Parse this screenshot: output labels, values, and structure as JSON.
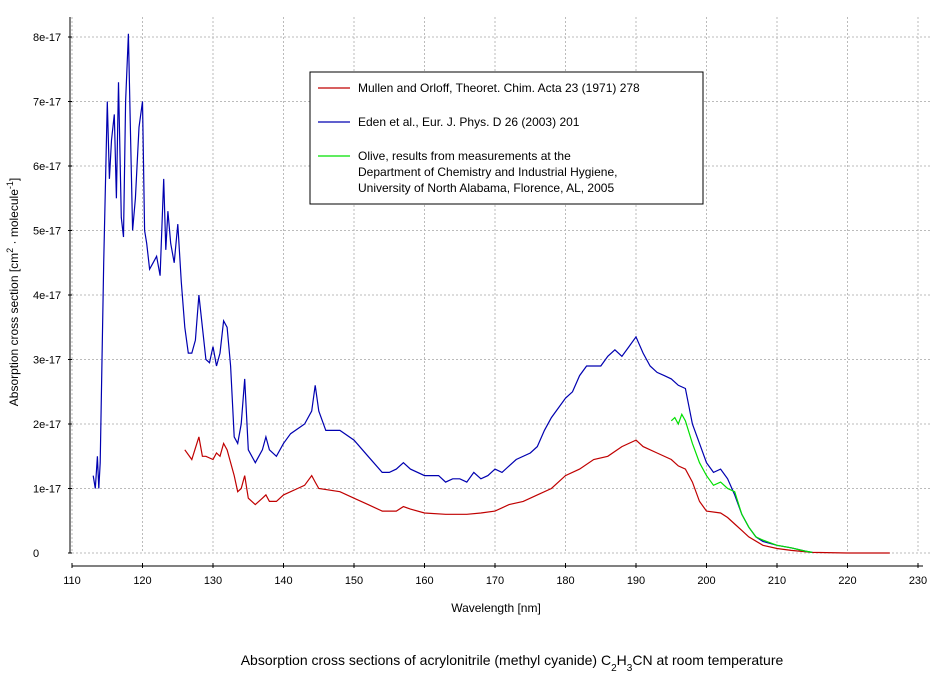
{
  "chart_data": {
    "type": "line",
    "title": [
      "Absorption cross sections of acrylonitrile (methyl cyanide) C",
      "2",
      "H",
      "3",
      "CN at room temperature"
    ],
    "x_label": "Wavelength [nm]",
    "y_label": [
      "Absorption cross section [cm",
      "2",
      " · molecule",
      "-1",
      "]"
    ],
    "xlim": [
      110,
      230
    ],
    "xticks": [
      110,
      120,
      130,
      140,
      150,
      160,
      170,
      180,
      190,
      200,
      210,
      220,
      230
    ],
    "ylim": [
      0,
      8e-17
    ],
    "yticks": [
      0,
      1e-17,
      2e-17,
      3e-17,
      4e-17,
      5e-17,
      6e-17,
      7e-17,
      8e-17
    ],
    "grid": true,
    "legend": "top-center",
    "series": [
      {
        "name": [
          "Mullen and Orloff, Theoret. Chim. Acta 23 (1971) 278"
        ],
        "color": "#c00000",
        "x": [
          126,
          127,
          128,
          128.5,
          129,
          130,
          130.5,
          131,
          131.5,
          132,
          133,
          133.5,
          134,
          134.5,
          135,
          136,
          137,
          137.5,
          138,
          139,
          140,
          142,
          143,
          144,
          144.5,
          145,
          148,
          150,
          152,
          154,
          156,
          157,
          158,
          160,
          163,
          166,
          168,
          170,
          172,
          174,
          176,
          178,
          180,
          182,
          184,
          186,
          188,
          190,
          191,
          193,
          195,
          196,
          197,
          198,
          199,
          200,
          202,
          203,
          204,
          205,
          206,
          208,
          210,
          212,
          215,
          220,
          226
        ],
        "values": [
          1.6e-17,
          1.45e-17,
          1.8e-17,
          1.5e-17,
          1.5e-17,
          1.45e-17,
          1.55e-17,
          1.5e-17,
          1.7e-17,
          1.6e-17,
          1.2e-17,
          9.5e-18,
          1e-17,
          1.2e-17,
          8.5e-18,
          7.5e-18,
          8.5e-18,
          9e-18,
          8e-18,
          8e-18,
          9e-18,
          1e-17,
          1.05e-17,
          1.2e-17,
          1.1e-17,
          1e-17,
          9.5e-18,
          8.5e-18,
          7.5e-18,
          6.5e-18,
          6.5e-18,
          7.2e-18,
          6.8e-18,
          6.2e-18,
          6e-18,
          6e-18,
          6.2e-18,
          6.5e-18,
          7.5e-18,
          8e-18,
          9e-18,
          1e-17,
          1.2e-17,
          1.3e-17,
          1.45e-17,
          1.5e-17,
          1.65e-17,
          1.75e-17,
          1.65e-17,
          1.55e-17,
          1.45e-17,
          1.35e-17,
          1.3e-17,
          1.1e-17,
          8e-18,
          6.5e-18,
          6.2e-18,
          5.5e-18,
          4.5e-18,
          3.5e-18,
          2.5e-18,
          1.2e-18,
          7e-19,
          4e-19,
          1e-19,
          0,
          0
        ]
      },
      {
        "name": [
          "Eden et al., Eur. J. Phys. D 26 (2003) 201"
        ],
        "color": "#0000b0",
        "x": [
          113,
          113.3,
          113.6,
          113.8,
          114,
          114.5,
          115,
          115.3,
          115.6,
          116,
          116.3,
          116.6,
          117,
          117.3,
          117.6,
          118,
          118.3,
          118.6,
          119,
          119.5,
          120,
          120.3,
          120.6,
          121,
          121.5,
          122,
          122.5,
          123,
          123.3,
          123.6,
          124,
          124.5,
          125,
          125.5,
          126,
          126.5,
          127,
          127.5,
          128,
          128.5,
          129,
          129.5,
          130,
          130.5,
          131,
          131.5,
          132,
          132.5,
          133,
          133.5,
          134,
          134.5,
          135,
          136,
          137,
          137.5,
          138,
          139,
          140,
          141,
          143,
          144,
          144.5,
          145,
          146,
          148,
          150,
          152,
          154,
          155,
          156,
          157,
          158,
          160,
          162,
          163,
          164,
          165,
          166,
          167,
          168,
          169,
          170,
          171,
          172,
          173,
          175,
          176,
          177,
          178,
          180,
          181,
          182,
          183,
          184,
          185,
          186,
          187,
          188,
          189,
          190,
          191,
          192,
          193,
          194,
          195,
          196,
          197,
          198,
          199,
          200,
          201,
          202,
          203,
          204,
          205,
          206,
          207,
          208,
          210,
          212,
          214,
          215
        ],
        "values": [
          1.2e-17,
          1e-17,
          1.5e-17,
          1e-17,
          1.4e-17,
          4.5e-17,
          7e-17,
          5.8e-17,
          6.4e-17,
          6.8e-17,
          5.5e-17,
          7.3e-17,
          5.2e-17,
          4.9e-17,
          7e-17,
          8.05e-17,
          6.5e-17,
          5e-17,
          5.5e-17,
          6.6e-17,
          7e-17,
          5e-17,
          4.8e-17,
          4.4e-17,
          4.5e-17,
          4.6e-17,
          4.3e-17,
          5.8e-17,
          4.7e-17,
          5.3e-17,
          4.8e-17,
          4.5e-17,
          5.1e-17,
          4.2e-17,
          3.5e-17,
          3.1e-17,
          3.1e-17,
          3.3e-17,
          4e-17,
          3.5e-17,
          3e-17,
          2.95e-17,
          3.2e-17,
          2.9e-17,
          3.1e-17,
          3.6e-17,
          3.5e-17,
          2.9e-17,
          1.8e-17,
          1.7e-17,
          2e-17,
          2.7e-17,
          1.6e-17,
          1.4e-17,
          1.6e-17,
          1.8e-17,
          1.6e-17,
          1.5e-17,
          1.7e-17,
          1.85e-17,
          2e-17,
          2.2e-17,
          2.6e-17,
          2.2e-17,
          1.9e-17,
          1.9e-17,
          1.75e-17,
          1.5e-17,
          1.25e-17,
          1.25e-17,
          1.3e-17,
          1.4e-17,
          1.3e-17,
          1.2e-17,
          1.2e-17,
          1.1e-17,
          1.15e-17,
          1.15e-17,
          1.1e-17,
          1.25e-17,
          1.15e-17,
          1.2e-17,
          1.3e-17,
          1.25e-17,
          1.35e-17,
          1.45e-17,
          1.55e-17,
          1.65e-17,
          1.9e-17,
          2.1e-17,
          2.4e-17,
          2.5e-17,
          2.75e-17,
          2.9e-17,
          2.9e-17,
          2.9e-17,
          3.05e-17,
          3.15e-17,
          3.05e-17,
          3.2e-17,
          3.35e-17,
          3.1e-17,
          2.9e-17,
          2.8e-17,
          2.75e-17,
          2.7e-17,
          2.6e-17,
          2.55e-17,
          2e-17,
          1.7e-17,
          1.4e-17,
          1.25e-17,
          1.3e-17,
          1.15e-17,
          9e-18,
          6e-18,
          4e-18,
          2.5e-18,
          1.8e-18,
          1.2e-18,
          8e-19,
          3e-19,
          1e-19
        ]
      },
      {
        "name": [
          "Olive, results from measurements at the",
          "Department of Chemistry and Industrial Hygiene,",
          "University of North Alabama, Florence, AL, 2005"
        ],
        "color": "#00e000",
        "x": [
          195,
          195.5,
          196,
          196.5,
          197,
          198,
          199,
          200,
          201,
          202,
          203,
          204,
          205,
          206,
          207,
          208,
          210,
          212,
          214,
          215
        ],
        "values": [
          2.05e-17,
          2.1e-17,
          2e-17,
          2.15e-17,
          2.05e-17,
          1.7e-17,
          1.4e-17,
          1.2e-17,
          1.05e-17,
          1.1e-17,
          1e-17,
          9.5e-18,
          6e-18,
          4e-18,
          2.5e-18,
          2e-18,
          1.2e-18,
          8e-19,
          3e-19,
          1e-19
        ]
      }
    ]
  }
}
